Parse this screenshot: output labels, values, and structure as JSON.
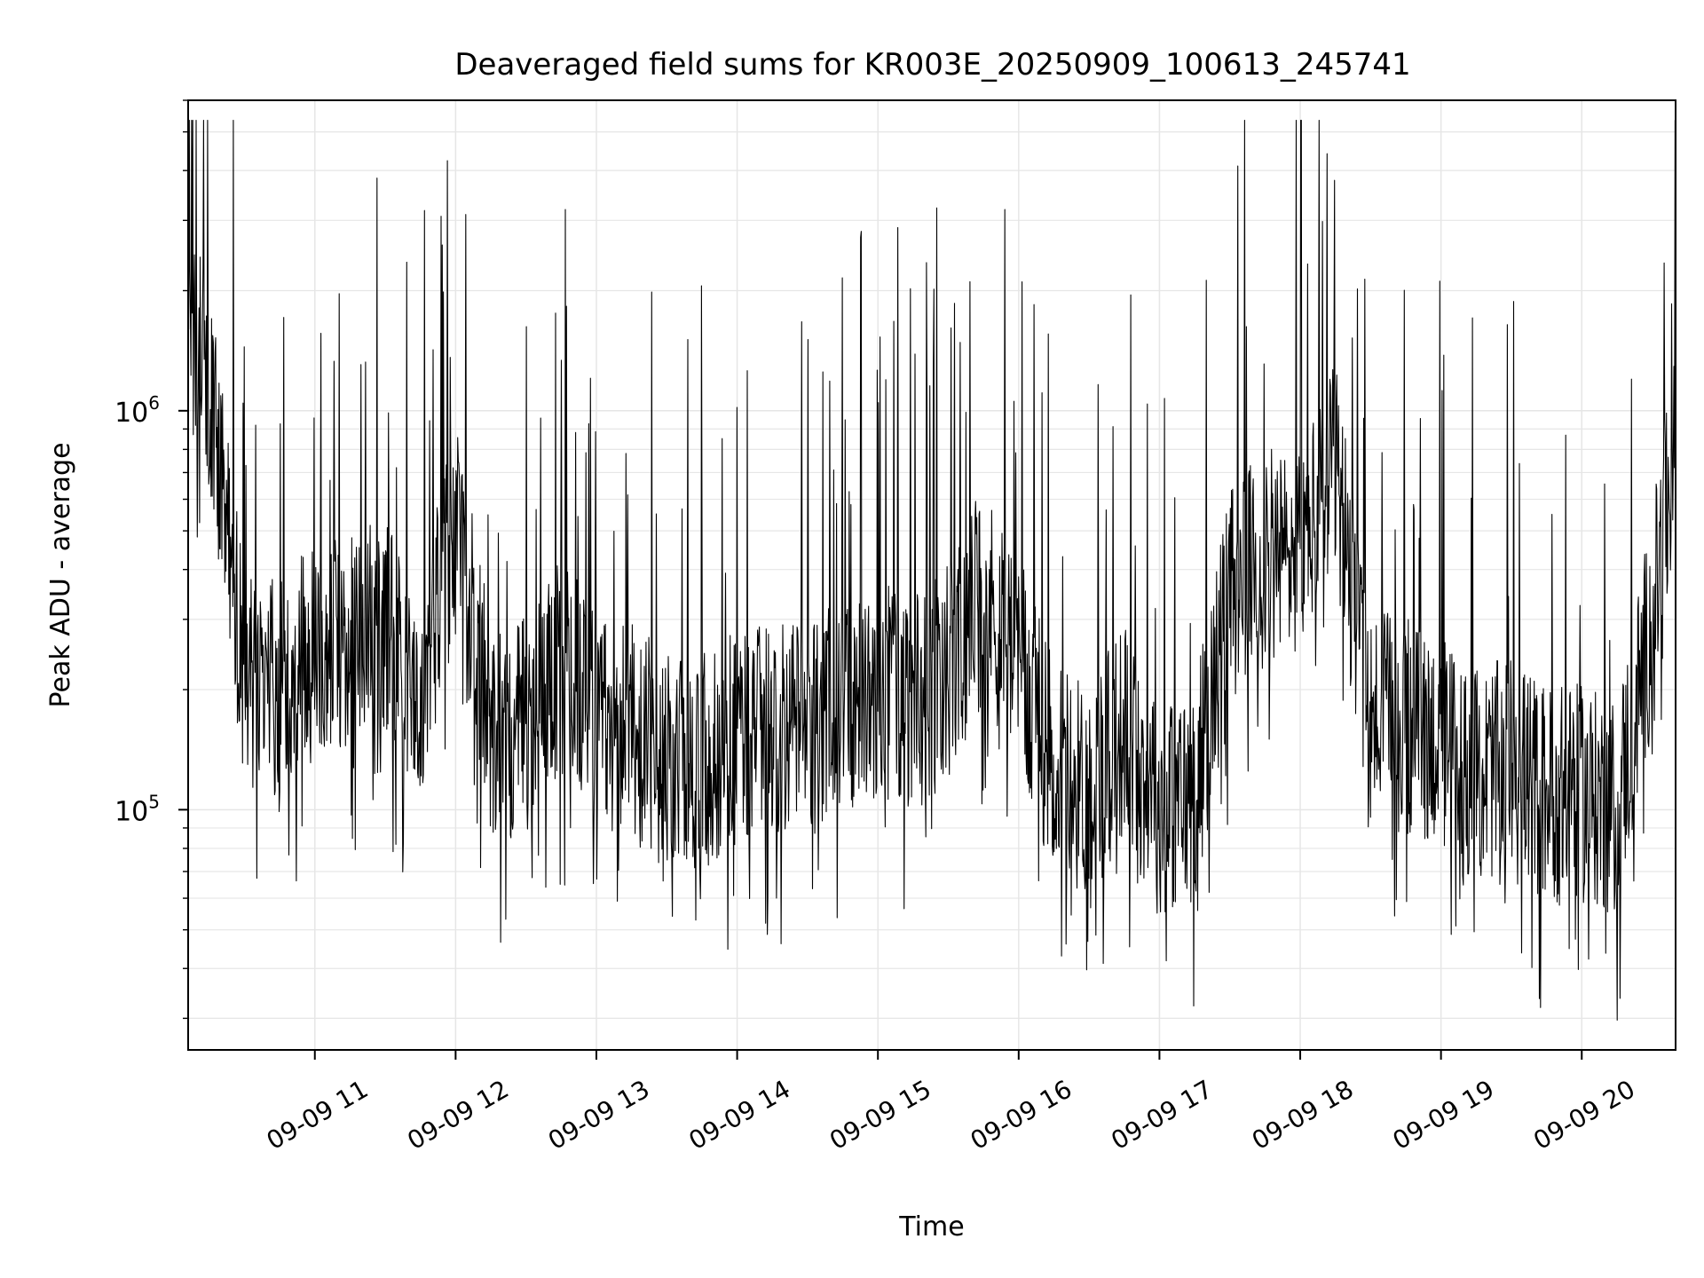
{
  "chart_data": {
    "type": "line",
    "title": "Deaveraged field sums for KR003E_20250909_100613_245741",
    "xlabel": "Time",
    "ylabel": "Peak ADU - average",
    "yscale": "log",
    "ylim": [
      25000,
      6000000
    ],
    "xlim": [
      "2025-09-09 10:06",
      "2025-09-09 20:40"
    ],
    "x_tick_labels": [
      "09-09 11",
      "09-09 12",
      "09-09 13",
      "09-09 14",
      "09-09 15",
      "09-09 16",
      "09-09 17",
      "09-09 18",
      "09-09 19",
      "09-09 20"
    ],
    "y_tick_labels": [
      {
        "base": "10",
        "exp": "5",
        "value": 100000
      },
      {
        "base": "10",
        "exp": "6",
        "value": 1000000
      }
    ],
    "grid": true,
    "line_color": "#000000",
    "series": [
      {
        "name": "",
        "x": [
          "2025-09-09 10:06",
          "2025-09-09 10:15",
          "2025-09-09 10:30",
          "2025-09-09 10:45",
          "2025-09-09 11:00",
          "2025-09-09 11:15",
          "2025-09-09 11:30",
          "2025-09-09 11:45",
          "2025-09-09 12:00",
          "2025-09-09 12:15",
          "2025-09-09 12:30",
          "2025-09-09 12:45",
          "2025-09-09 13:00",
          "2025-09-09 13:15",
          "2025-09-09 13:30",
          "2025-09-09 13:45",
          "2025-09-09 14:00",
          "2025-09-09 14:15",
          "2025-09-09 14:30",
          "2025-09-09 14:45",
          "2025-09-09 15:00",
          "2025-09-09 15:15",
          "2025-09-09 15:30",
          "2025-09-09 15:45",
          "2025-09-09 16:00",
          "2025-09-09 16:15",
          "2025-09-09 16:30",
          "2025-09-09 16:45",
          "2025-09-09 17:00",
          "2025-09-09 17:15",
          "2025-09-09 17:30",
          "2025-09-09 17:45",
          "2025-09-09 18:00",
          "2025-09-09 18:15",
          "2025-09-09 18:30",
          "2025-09-09 18:45",
          "2025-09-09 19:00",
          "2025-09-09 19:15",
          "2025-09-09 19:30",
          "2025-09-09 19:45",
          "2025-09-09 20:00",
          "2025-09-09 20:15",
          "2025-09-09 20:30",
          "2025-09-09 20:40"
        ],
        "y": [
          1600000,
          1100000,
          210000,
          200000,
          250000,
          260000,
          300000,
          200000,
          500000,
          160000,
          160000,
          230000,
          170000,
          160000,
          130000,
          130000,
          150000,
          160000,
          160000,
          180000,
          200000,
          180000,
          220000,
          350000,
          230000,
          130000,
          110000,
          160000,
          100000,
          110000,
          350000,
          420000,
          450000,
          700000,
          170000,
          160000,
          150000,
          120000,
          130000,
          110000,
          110000,
          100000,
          300000,
          800000
        ]
      }
    ]
  }
}
